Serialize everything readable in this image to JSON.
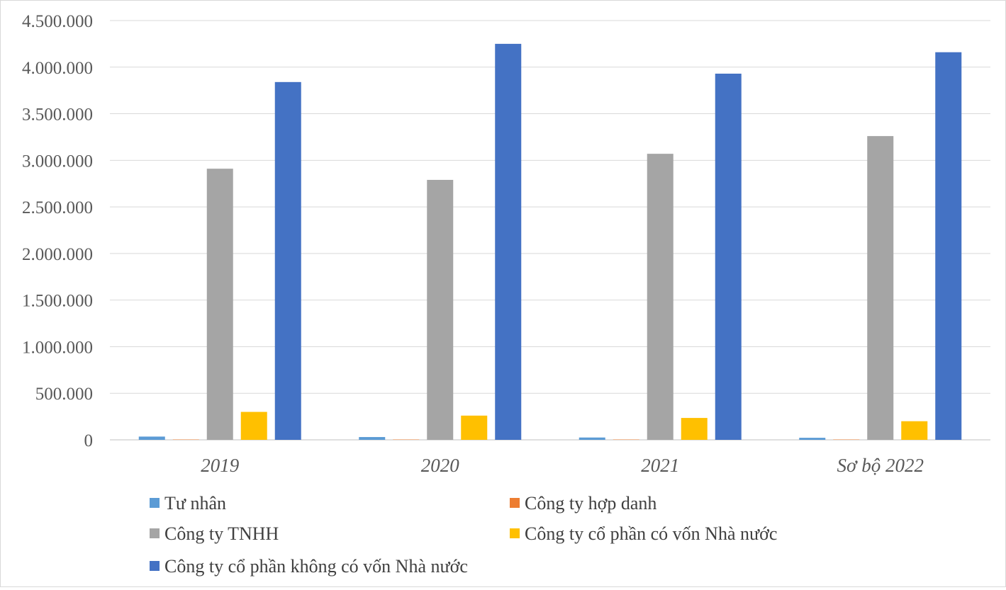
{
  "chart_data": {
    "type": "bar",
    "title": "",
    "xlabel": "",
    "ylabel": "",
    "categories": [
      "2019",
      "2020",
      "2021",
      "Sơ bộ 2022"
    ],
    "ylim": [
      0,
      4500000
    ],
    "yticks": [
      0,
      500000,
      1000000,
      1500000,
      2000000,
      2500000,
      3000000,
      3500000,
      4000000,
      4500000
    ],
    "ytick_labels": [
      "0",
      "500.000",
      "1.000.000",
      "1.500.000",
      "2.000.000",
      "2.500.000",
      "3.000.000",
      "3.500.000",
      "4.000.000",
      "4.500.000"
    ],
    "grid": true,
    "legend_position": "bottom",
    "series": [
      {
        "name": "Tư nhân",
        "color": "#5b9bd5",
        "values": [
          35000,
          30000,
          25000,
          22000
        ]
      },
      {
        "name": "Công ty hợp danh",
        "color": "#ed7d31",
        "values": [
          1000,
          1000,
          1000,
          1000
        ]
      },
      {
        "name": "Công ty TNHH",
        "color": "#a5a5a5",
        "values": [
          2910000,
          2790000,
          3070000,
          3260000
        ]
      },
      {
        "name": "Công ty cổ phần có vốn Nhà nước",
        "color": "#ffc000",
        "values": [
          300000,
          260000,
          235000,
          200000
        ]
      },
      {
        "name": "Công ty cổ phần không có vốn Nhà nước",
        "color": "#4472c4",
        "values": [
          3840000,
          4250000,
          3930000,
          4160000
        ]
      }
    ]
  }
}
